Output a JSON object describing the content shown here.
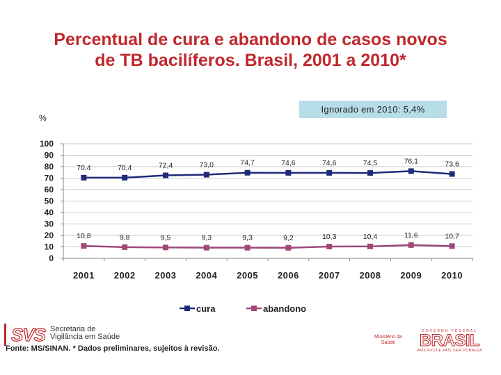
{
  "header": {
    "title_line1": "Percentual de cura e abandono de casos novos",
    "title_line2": "de TB bacilíferos. Brasil, 2001 a 2010*"
  },
  "annotation": "Ignorado em 2010: 5,4%",
  "footer": {
    "source": "Fonte: MS/SINAN. * Dados preliminares, sujeitos à revisão.",
    "svs_mark": "SVS",
    "svs_line1": "Secretaria de",
    "svs_line2": "Vigilância em Saúde",
    "ministry_line1": "Ministério da",
    "ministry_line2": "Saúde",
    "brasil_top": "GOVERNO FEDERAL",
    "brasil_word": "BRASIL",
    "brasil_sub": "PAÍS RICO É PAÍS SEM POBREZA"
  },
  "colors": {
    "title": "#c0282c",
    "cura": "#1f2a7a",
    "abandono": "#a0487a",
    "note_bg": "#b6dde8",
    "grid": "#c8c8c8"
  },
  "chart_data": {
    "type": "line",
    "title": "",
    "ylabel": "%",
    "ylim": [
      0,
      100
    ],
    "yticks": [
      0,
      10,
      20,
      30,
      40,
      50,
      60,
      70,
      80,
      90,
      100
    ],
    "x": [
      "2001",
      "2002",
      "2003",
      "2004",
      "2005",
      "2006",
      "2007",
      "2008",
      "2009",
      "2010"
    ],
    "grid": true,
    "legend": "bottom",
    "series": [
      {
        "name": "cura",
        "color": "#1f2a7a",
        "marker": "square",
        "values": [
          70.4,
          70.4,
          72.4,
          73.0,
          74.7,
          74.6,
          74.6,
          74.5,
          76.1,
          73.6
        ],
        "labels": [
          "70,4",
          "70,4",
          "72,4",
          "73,0",
          "74,7",
          "74,6",
          "74,6",
          "74,5",
          "76,1",
          "73,6"
        ]
      },
      {
        "name": "abandono",
        "color": "#a0487a",
        "marker": "square",
        "values": [
          10.8,
          9.8,
          9.5,
          9.3,
          9.3,
          9.2,
          10.3,
          10.4,
          11.6,
          10.7
        ],
        "labels": [
          "10,8",
          "9,8",
          "9,5",
          "9,3",
          "9,3",
          "9,2",
          "10,3",
          "10,4",
          "11,6",
          "10,7"
        ]
      }
    ]
  }
}
